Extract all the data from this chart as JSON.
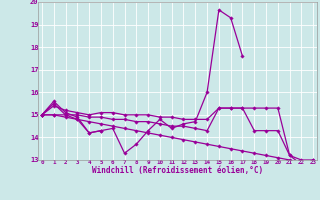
{
  "x": [
    0,
    1,
    2,
    3,
    4,
    5,
    6,
    7,
    8,
    9,
    10,
    11,
    12,
    13,
    14,
    15,
    16,
    17,
    18,
    19,
    20,
    21,
    22,
    23
  ],
  "line1": [
    15.0,
    15.6,
    15.1,
    14.9,
    14.2,
    14.3,
    null,
    null,
    null,
    null,
    null,
    null,
    null,
    null,
    null,
    null,
    null,
    null,
    null,
    null,
    null,
    null,
    null,
    null
  ],
  "line2": [
    15.0,
    15.5,
    15.0,
    14.8,
    14.2,
    14.3,
    14.4,
    13.3,
    13.7,
    14.3,
    14.8,
    14.4,
    14.6,
    14.7,
    16.0,
    19.65,
    19.3,
    17.6,
    null,
    null,
    null,
    null,
    null,
    null
  ],
  "line3": [
    15.0,
    15.4,
    15.2,
    15.1,
    15.0,
    15.1,
    15.1,
    15.0,
    15.0,
    15.0,
    14.9,
    14.9,
    14.8,
    14.8,
    14.8,
    15.3,
    15.3,
    15.3,
    15.3,
    15.3,
    15.3,
    13.2,
    13.0,
    13.0
  ],
  "line4": [
    15.0,
    15.0,
    15.0,
    15.0,
    14.9,
    14.9,
    14.8,
    14.8,
    14.7,
    14.7,
    14.6,
    14.5,
    14.5,
    14.4,
    14.3,
    15.3,
    15.3,
    15.3,
    14.3,
    14.3,
    14.3,
    13.2,
    12.8,
    13.0
  ],
  "line5": [
    15.0,
    15.0,
    14.9,
    14.8,
    14.7,
    14.6,
    14.5,
    14.4,
    14.3,
    14.2,
    14.1,
    14.0,
    13.9,
    13.8,
    13.7,
    13.6,
    13.5,
    13.4,
    13.3,
    13.2,
    13.1,
    13.0,
    12.8,
    12.9
  ],
  "line_color": "#990099",
  "bg_color": "#cce8e8",
  "grid_color": "#ffffff",
  "xlabel": "Windchill (Refroidissement éolien,°C)",
  "ylim": [
    13,
    20
  ],
  "xlim": [
    0,
    23
  ],
  "yticks": [
    13,
    14,
    15,
    16,
    17,
    18,
    19,
    20
  ],
  "xticks": [
    0,
    1,
    2,
    3,
    4,
    5,
    6,
    7,
    8,
    9,
    10,
    11,
    12,
    13,
    14,
    15,
    16,
    17,
    18,
    19,
    20,
    21,
    22,
    23
  ]
}
